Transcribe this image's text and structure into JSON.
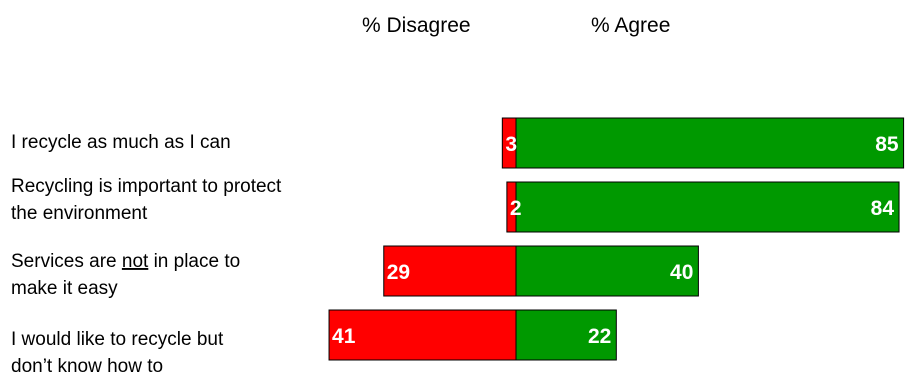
{
  "chart_data": {
    "type": "bar",
    "orientation": "horizontal-diverging",
    "headers": {
      "disagree": "% Disagree",
      "agree": "% Agree"
    },
    "categories": [
      [
        "I recycle as much as I can"
      ],
      [
        "Recycling is important to protect",
        "the environment"
      ],
      [
        "Services are ",
        "not",
        " in place to",
        "make it easy"
      ],
      [
        "I would like to recycle but",
        "don’t know how to"
      ]
    ],
    "series": [
      {
        "name": "% Disagree",
        "values": [
          3,
          2,
          29,
          41
        ]
      },
      {
        "name": "% Agree",
        "values": [
          85,
          84,
          40,
          22
        ]
      }
    ],
    "colors": {
      "disagree": "#ff0000",
      "agree": "#009900",
      "outline": "#000000",
      "labels": "#ffffff"
    },
    "legend": "none",
    "grid": false
  }
}
